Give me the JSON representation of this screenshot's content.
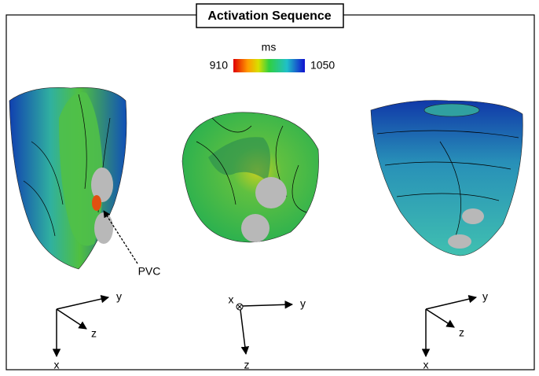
{
  "title": "Activation Sequence",
  "colorbar": {
    "unit": "ms",
    "min": 910,
    "max": 1050
  },
  "annotation": "PVC",
  "axes": [
    {
      "labels": [
        "y",
        "z",
        "x"
      ]
    },
    {
      "labels": [
        "x",
        "y",
        "z"
      ]
    },
    {
      "labels": [
        "y",
        "z",
        "x"
      ]
    }
  ]
}
